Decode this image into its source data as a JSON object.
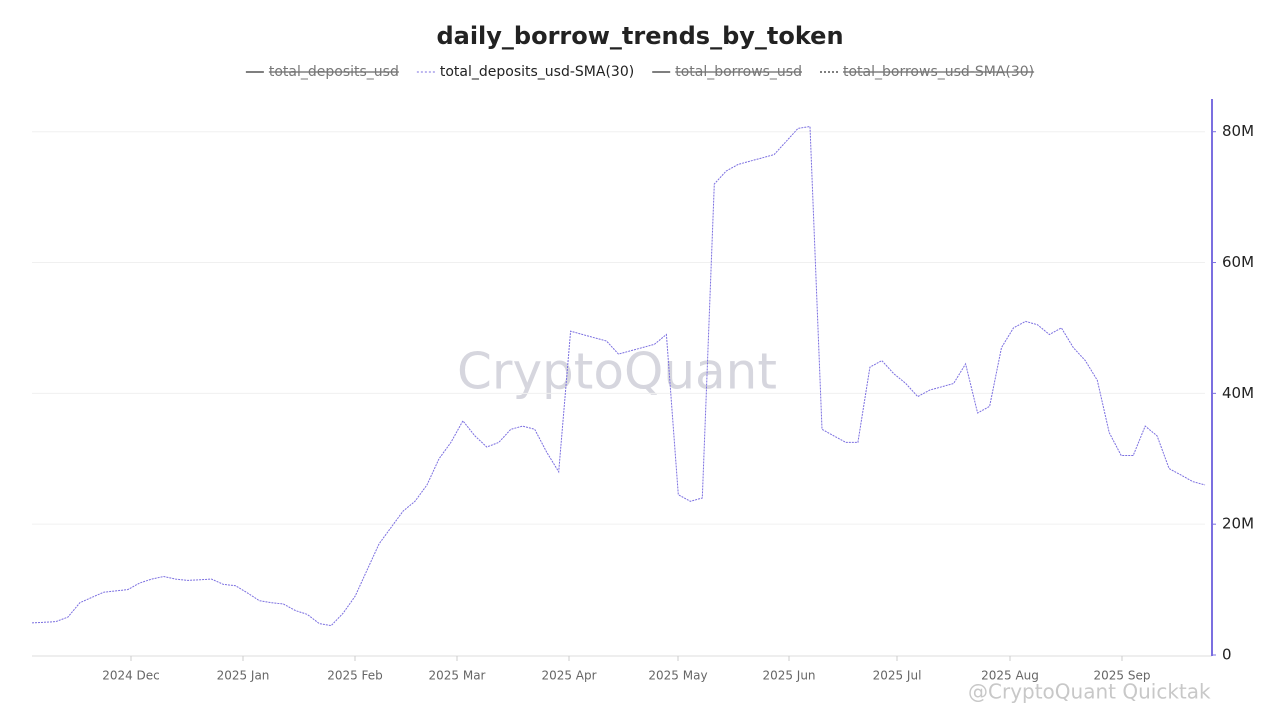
{
  "chart_data": {
    "type": "line",
    "title": "daily_borrow_trends_by_token",
    "watermark": "CryptoQuant",
    "credit": "@CryptoQuant Quicktak",
    "series": [
      {
        "name": "total_deposits_usd",
        "color": "#666666",
        "hidden": true
      },
      {
        "name": "total_deposits_usd-SMA(30)",
        "color": "#7b6fe0",
        "hidden": false,
        "values": [
          4900000,
          5000000,
          5100000,
          5800000,
          8000000,
          8800000,
          9600000,
          9800000,
          10000000,
          11000000,
          11600000,
          12000000,
          11600000,
          11400000,
          11500000,
          11600000,
          10800000,
          10600000,
          9500000,
          8300000,
          8000000,
          7800000,
          6800000,
          6200000,
          4800000,
          4500000,
          6400000,
          9000000,
          13000000,
          17000000,
          19500000,
          22000000,
          23500000,
          26000000,
          30000000,
          32500000,
          35800000,
          33500000,
          31800000,
          32500000,
          34500000,
          35000000,
          34500000,
          31000000,
          28000000,
          49500000,
          49000000,
          48500000,
          48000000,
          46000000,
          46500000,
          47000000,
          47500000,
          49000000,
          24500000,
          23500000,
          24000000,
          72000000,
          74000000,
          75000000,
          75500000,
          76000000,
          76500000,
          78500000,
          80500000,
          80800000,
          34500000,
          33500000,
          32500000,
          32500000,
          44000000,
          45000000,
          43000000,
          41500000,
          39500000,
          40500000,
          41000000,
          41500000,
          44500000,
          37000000,
          38000000,
          47000000,
          50000000,
          51000000,
          50500000,
          49000000,
          50000000,
          47000000,
          45000000,
          42000000,
          34000000,
          30500000,
          30500000,
          35000000,
          33500000,
          28500000,
          27500000,
          26500000,
          26000000
        ]
      },
      {
        "name": "total_borrows_usd",
        "color": "#666666",
        "hidden": true
      },
      {
        "name": "total_borrows_usd-SMA(30)",
        "color": "#888888",
        "hidden": true
      }
    ],
    "xtick_labels": [
      "2024 Dec",
      "2025 Jan",
      "2025 Feb",
      "2025 Mar",
      "2025 Apr",
      "2025 May",
      "2025 Jun",
      "2025 Jul",
      "2025 Aug",
      "2025 Sep"
    ],
    "ylim": [
      0,
      85000000
    ],
    "yticks": [
      0,
      {
        "value": 20000000,
        "label": "20M"
      },
      {
        "value": 40000000,
        "label": "40M"
      },
      {
        "value": 60000000,
        "label": "60M"
      },
      {
        "value": 80000000,
        "label": "80M"
      }
    ],
    "y_axis_side": "right",
    "axis_color": "#7b6fe0",
    "grid": true
  }
}
